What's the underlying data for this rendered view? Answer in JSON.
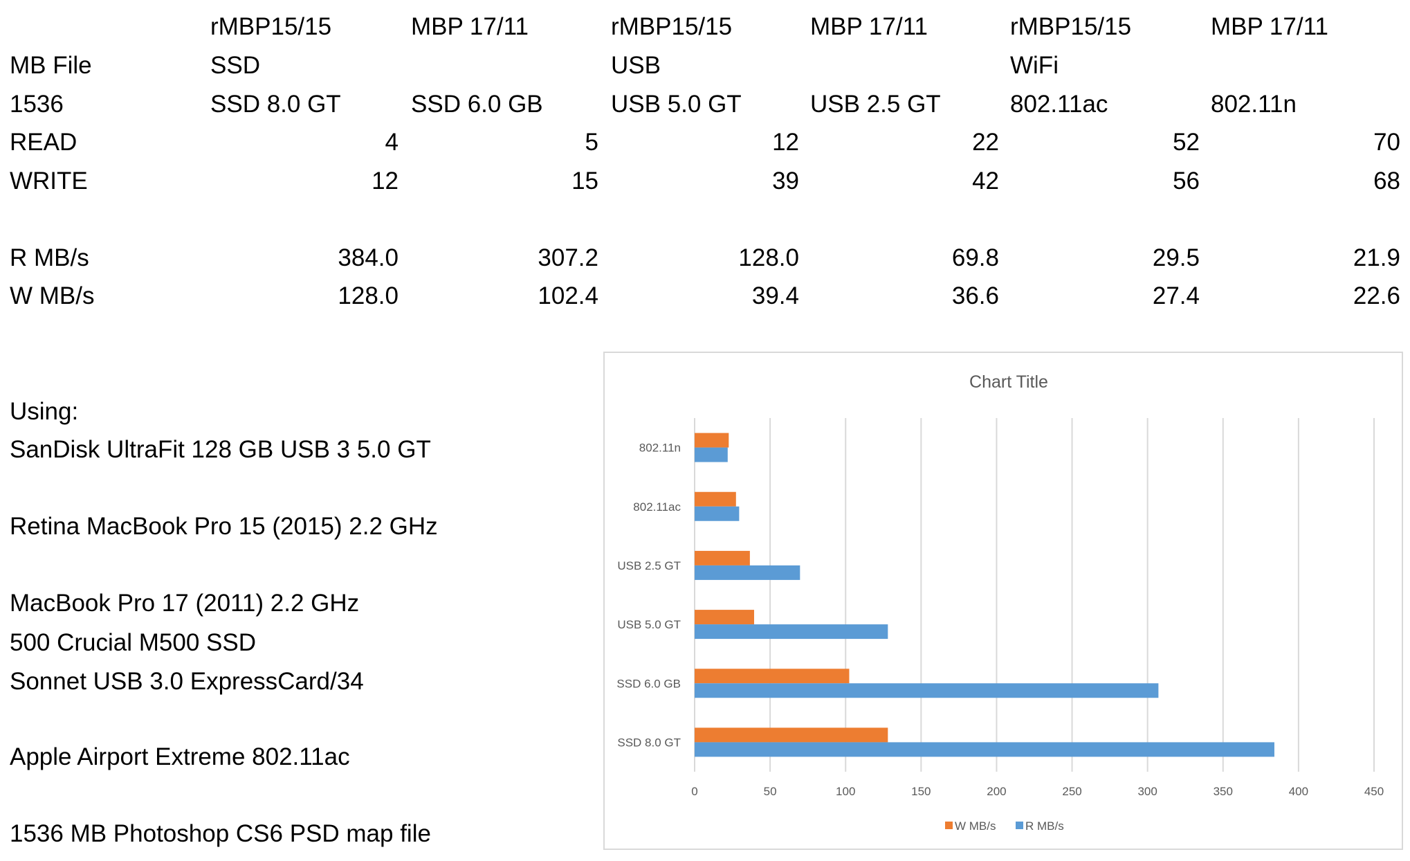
{
  "table": {
    "header_row1": [
      "",
      "rMBP15/15",
      "MBP 17/11",
      "rMBP15/15",
      "MBP 17/11",
      "rMBP15/15",
      "MBP 17/11"
    ],
    "header_row2": [
      "MB File",
      "SSD",
      "",
      "USB",
      "",
      "WiFi",
      ""
    ],
    "header_row3": [
      "1536",
      "SSD 8.0 GT",
      "SSD 6.0 GB",
      "USB 5.0 GT",
      "USB 2.5 GT",
      "802.11ac",
      "802.11n"
    ],
    "read": [
      "READ",
      "4",
      "5",
      "12",
      "22",
      "52",
      "70"
    ],
    "write": [
      "WRITE",
      "12",
      "15",
      "39",
      "42",
      "56",
      "68"
    ],
    "r_mbs": [
      "R MB/s",
      "384.0",
      "307.2",
      "128.0",
      "69.8",
      "29.5",
      "21.9"
    ],
    "w_mbs": [
      "W MB/s",
      "128.0",
      "102.4",
      "39.4",
      "36.6",
      "27.4",
      "22.6"
    ]
  },
  "notes": [
    "Using:",
    "SanDisk UltraFit 128 GB USB 3 5.0 GT",
    "Retina MacBook Pro 15 (2015) 2.2 GHz",
    "MacBook Pro 17 (2011) 2.2 GHz",
    "500 Crucial M500 SSD",
    "Sonnet USB 3.0 ExpressCard/34",
    "Apple Airport Extreme 802.11ac",
    "1536 MB Photoshop CS6 PSD map file"
  ],
  "chart_data": {
    "type": "bar",
    "orientation": "horizontal",
    "title": "Chart Title",
    "categories": [
      "SSD 8.0 GT",
      "SSD 6.0 GB",
      "USB 5.0 GT",
      "USB 2.5 GT",
      "802.11ac",
      "802.11n"
    ],
    "series": [
      {
        "name": "R MB/s",
        "values": [
          384.0,
          307.2,
          128.0,
          69.8,
          29.5,
          21.9
        ],
        "color": "#5b9bd5"
      },
      {
        "name": "W MB/s",
        "values": [
          128.0,
          102.4,
          39.4,
          36.6,
          27.4,
          22.6
        ],
        "color": "#ed7d31"
      }
    ],
    "xlim": [
      0,
      450
    ],
    "xticks": [
      "0",
      "50",
      "100",
      "150",
      "200",
      "250",
      "300",
      "350",
      "400",
      "450"
    ],
    "grid": true,
    "legend": "bottom",
    "legend_entries": [
      "W MB/s",
      "R MB/s"
    ]
  }
}
